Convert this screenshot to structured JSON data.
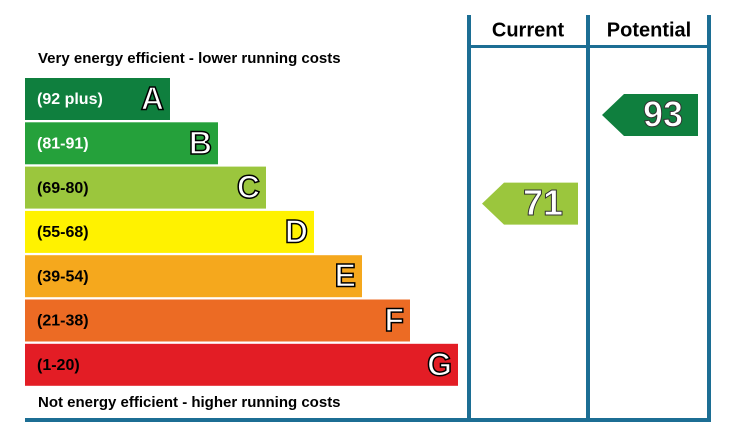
{
  "header": {
    "current": "Current",
    "potential": "Potential"
  },
  "top_note": "Very energy efficient - lower running costs",
  "bottom_note": "Not energy efficient - higher running costs",
  "bands": [
    {
      "range": "(92 plus)",
      "letter": "A",
      "color": "#0f7f3e",
      "text_color": "#ffffff"
    },
    {
      "range": "(81-91)",
      "letter": "B",
      "color": "#25a13b",
      "text_color": "#ffffff"
    },
    {
      "range": "(69-80)",
      "letter": "C",
      "color": "#9bc63d",
      "text_color": "#000000"
    },
    {
      "range": "(55-68)",
      "letter": "D",
      "color": "#fff200",
      "text_color": "#000000"
    },
    {
      "range": "(39-54)",
      "letter": "E",
      "color": "#f5a81d",
      "text_color": "#000000"
    },
    {
      "range": "(21-38)",
      "letter": "F",
      "color": "#ec6b24",
      "text_color": "#000000"
    },
    {
      "range": "(1-20)",
      "letter": "G",
      "color": "#e31d25",
      "text_color": "#000000"
    }
  ],
  "current": {
    "value": 71
  },
  "potential": {
    "value": 93
  }
}
